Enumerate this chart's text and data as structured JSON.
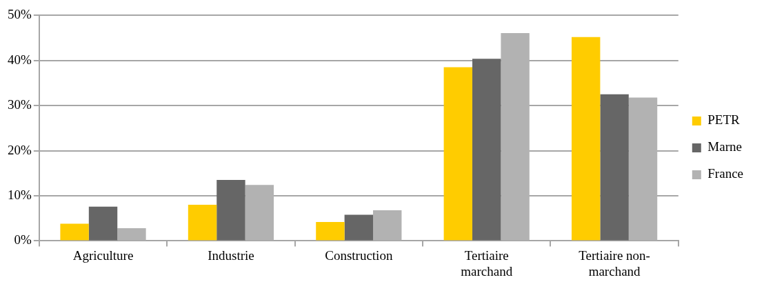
{
  "chart_data": {
    "type": "bar",
    "categories": [
      "Agriculture",
      "Industrie",
      "Construction",
      "Tertiaire marchand",
      "Tertiaire non-marchand"
    ],
    "series": [
      {
        "name": "PETR",
        "color": "#ffcc00",
        "values": [
          3.8,
          8.0,
          4.2,
          38.5,
          45.2
        ]
      },
      {
        "name": "Marne",
        "color": "#666666",
        "values": [
          7.6,
          13.5,
          5.8,
          40.4,
          32.5
        ]
      },
      {
        "name": "France",
        "color": "#b2b2b2",
        "values": [
          2.8,
          12.4,
          6.8,
          46.1,
          31.8
        ]
      }
    ],
    "ylim": [
      0,
      50
    ],
    "yticks": [
      {
        "value": 0,
        "label": "0%"
      },
      {
        "value": 10,
        "label": "10%"
      },
      {
        "value": 20,
        "label": "20%"
      },
      {
        "value": 30,
        "label": "30%"
      },
      {
        "value": 40,
        "label": "40%"
      },
      {
        "value": 50,
        "label": "50%"
      }
    ],
    "grid": "y",
    "legend": "right"
  }
}
